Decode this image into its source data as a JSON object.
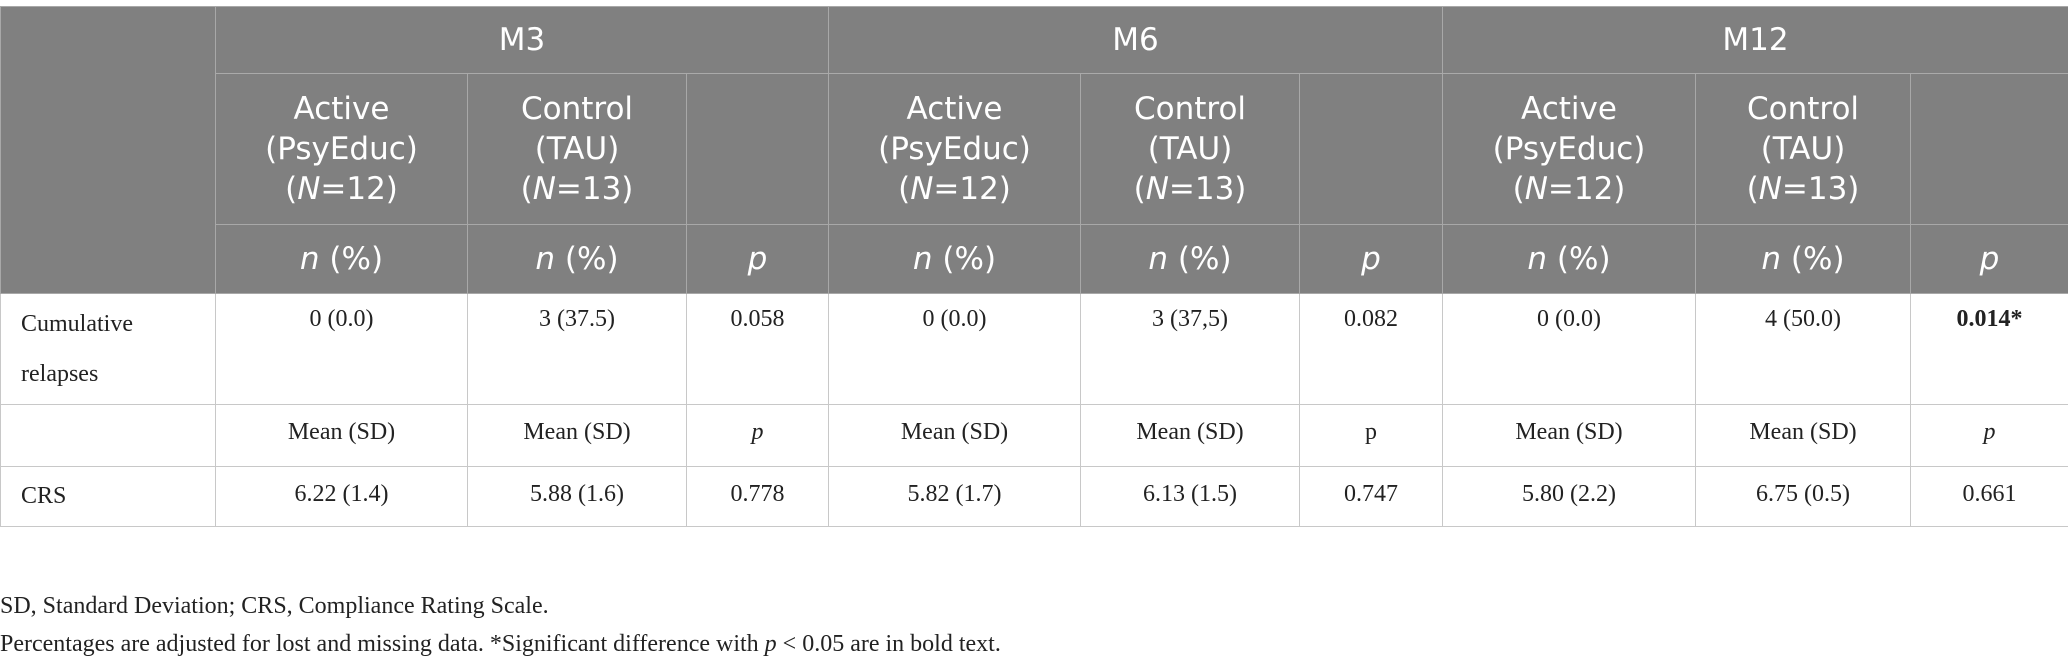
{
  "table": {
    "groups": [
      {
        "label": "M3",
        "arms": [
          {
            "name": "Active",
            "detail": "(PsyEduc)",
            "n_open": "(",
            "n_symbol": "N",
            "n_close": "=12)"
          },
          {
            "name": "Control",
            "detail": "(TAU)",
            "n_open": "(",
            "n_symbol": "N",
            "n_close": "=13)"
          }
        ],
        "stats": [
          {
            "symbol": "n",
            "rest": " (%)"
          },
          {
            "symbol": "n",
            "rest": " (%)"
          },
          {
            "symbol": "p"
          }
        ]
      },
      {
        "label": "M6",
        "arms": [
          {
            "name": "Active",
            "detail": "(PsyEduc)",
            "n_open": "(",
            "n_symbol": "N",
            "n_close": "=12)"
          },
          {
            "name": "Control",
            "detail": "(TAU)",
            "n_open": "(",
            "n_symbol": "N",
            "n_close": "=13)"
          }
        ],
        "stats": [
          {
            "symbol": "n",
            "rest": " (%)"
          },
          {
            "symbol": "n",
            "rest": " (%)"
          },
          {
            "symbol": "p"
          }
        ]
      },
      {
        "label": "M12",
        "arms": [
          {
            "name": "Active",
            "detail": "(PsyEduc)",
            "n_open": "(",
            "n_symbol": "N",
            "n_close": "=12)"
          },
          {
            "name": "Control",
            "detail": "(TAU)",
            "n_open": "(",
            "n_symbol": "N",
            "n_close": "=13)"
          }
        ],
        "stats": [
          {
            "symbol": "n",
            "rest": " (%)"
          },
          {
            "symbol": "n",
            "rest": " (%)"
          },
          {
            "symbol": "p"
          }
        ]
      }
    ],
    "rows": [
      {
        "label": "Cumulative relapses",
        "cells": [
          {
            "text": "0 (0.0)"
          },
          {
            "text": "3 (37.5)"
          },
          {
            "text": "0.058"
          },
          {
            "text": "0 (0.0)"
          },
          {
            "text": "3 (37,5)"
          },
          {
            "text": "0.082"
          },
          {
            "text": "0 (0.0)"
          },
          {
            "text": "4 (50.0)"
          },
          {
            "text": "0.014*",
            "style": "bold"
          }
        ]
      },
      {
        "cells": [
          {
            "text": "Mean (SD)"
          },
          {
            "text": "Mean (SD)"
          },
          {
            "text": "p",
            "style": "italic"
          },
          {
            "text": "Mean (SD)"
          },
          {
            "text": "Mean (SD)"
          },
          {
            "text": "p"
          },
          {
            "text": "Mean (SD)"
          },
          {
            "text": "Mean (SD)"
          },
          {
            "text": "p",
            "style": "italic"
          }
        ]
      },
      {
        "label": "CRS",
        "cells": [
          {
            "text": "6.22 (1.4)"
          },
          {
            "text": "5.88 (1.6)"
          },
          {
            "text": "0.778"
          },
          {
            "text": "5.82 (1.7)"
          },
          {
            "text": "6.13 (1.5)"
          },
          {
            "text": "0.747"
          },
          {
            "text": "5.80 (2.2)"
          },
          {
            "text": "6.75 (0.5)"
          },
          {
            "text": "0.661"
          }
        ]
      }
    ]
  },
  "footnotes": [
    {
      "text": "SD, Standard Deviation; CRS, Compliance Rating Scale."
    },
    {
      "before": "Percentages are adjusted for lost and missing data. *Significant difference with ",
      "symbol": "p",
      "after": " < 0.05 are in bold text."
    }
  ]
}
